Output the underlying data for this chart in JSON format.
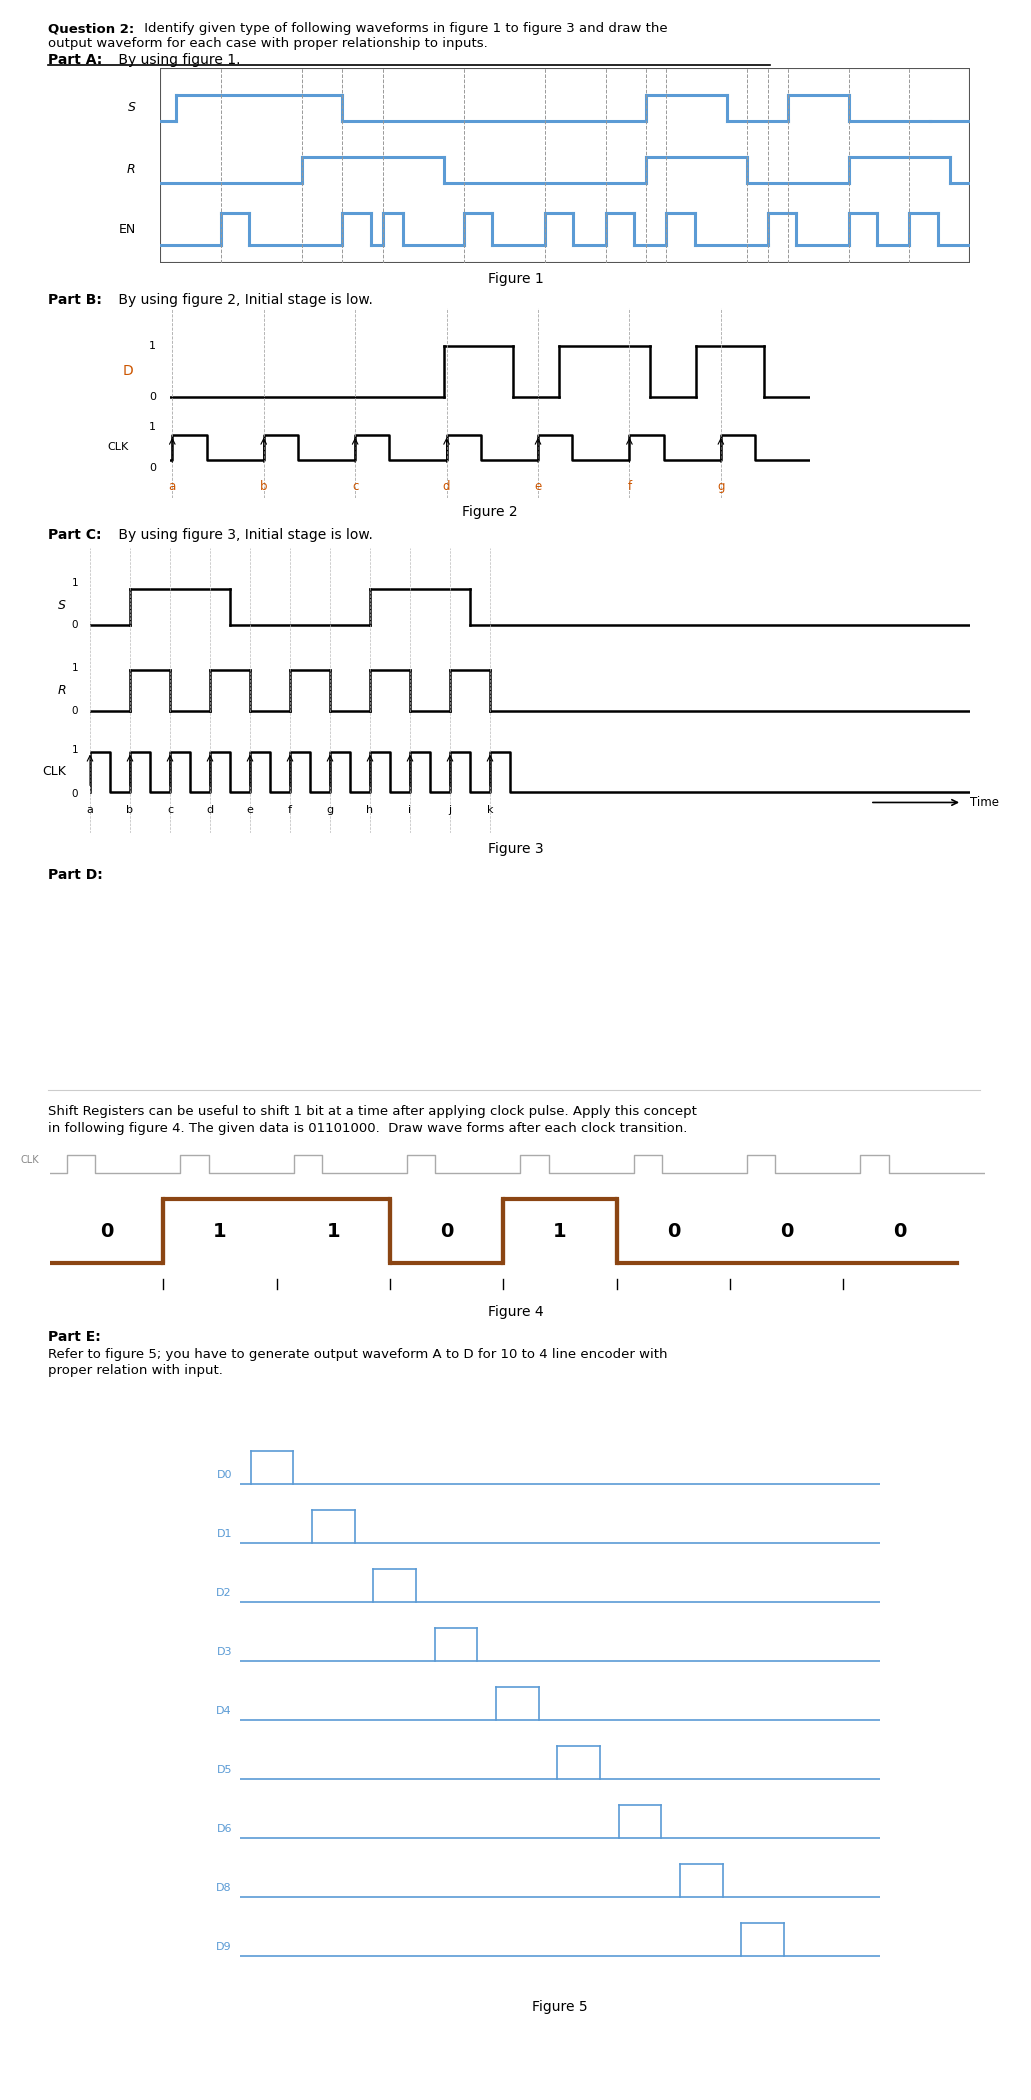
{
  "fig_width": 10.12,
  "fig_height": 20.8,
  "bg_color": "#ffffff",
  "wave_color_blue": "#5b9bd5",
  "wave_color_black": "#000000",
  "wave_color_brown": "#8B4513",
  "wave_color_orange": "#cc5500"
}
